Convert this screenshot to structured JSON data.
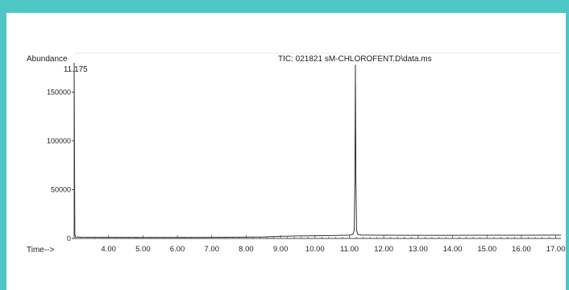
{
  "chart_data": {
    "type": "line",
    "title": "TIC: 021821 sM-CHLOROFENT.D\\data.ms",
    "ylabel": "Abundance",
    "xlabel": "Time-->",
    "xlim": [
      3.0,
      17.15
    ],
    "ylim": [
      0,
      180000
    ],
    "x_ticks": [
      "4.00",
      "5.00",
      "6.00",
      "7.00",
      "8.00",
      "9.00",
      "10.00",
      "11.00",
      "12.00",
      "13.00",
      "14.00",
      "15.00",
      "16.00",
      "17.00"
    ],
    "y_ticks": [
      "0",
      "50000",
      "100000",
      "150000"
    ],
    "peak_label": "11.175",
    "grid": false,
    "series": [
      {
        "x": [
          3.0,
          3.02,
          3.04,
          3.2,
          4.0,
          5.0,
          6.0,
          7.0,
          8.0,
          8.5,
          9.0,
          9.5,
          10.0,
          10.5,
          11.0,
          11.1,
          11.14,
          11.16,
          11.175,
          11.19,
          11.21,
          11.25,
          11.35,
          11.5,
          12.0,
          13.0,
          14.0,
          15.0,
          16.0,
          17.0,
          17.15
        ],
        "y": [
          180000,
          4000,
          1500,
          1200,
          1100,
          1000,
          1000,
          1100,
          1300,
          1500,
          2200,
          2600,
          2800,
          3000,
          3400,
          4000,
          8000,
          60000,
          178000,
          60000,
          8000,
          4000,
          3500,
          3400,
          3300,
          3200,
          3200,
          3300,
          3300,
          3400,
          3400
        ]
      }
    ]
  }
}
